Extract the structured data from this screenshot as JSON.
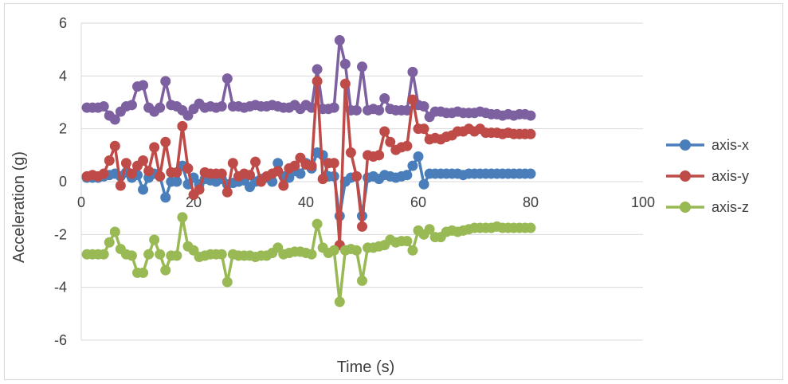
{
  "chart_data": {
    "type": "scatter",
    "title": "",
    "xlabel": "Time (s)",
    "ylabel": "Acceleration (g)",
    "xlim": [
      0,
      100
    ],
    "ylim": [
      -6,
      6
    ],
    "xticks": [
      0,
      20,
      40,
      60,
      80,
      100
    ],
    "yticks": [
      -6,
      -4,
      -2,
      0,
      2,
      4,
      6
    ],
    "grid": "horizontal",
    "legend_position": "right",
    "x": [
      1,
      2,
      3,
      4,
      5,
      6,
      7,
      8,
      9,
      10,
      11,
      12,
      13,
      14,
      15,
      16,
      17,
      18,
      19,
      20,
      21,
      22,
      23,
      24,
      25,
      26,
      27,
      28,
      29,
      30,
      31,
      32,
      33,
      34,
      35,
      36,
      37,
      38,
      39,
      40,
      41,
      42,
      43,
      44,
      45,
      46,
      47,
      48,
      49,
      50,
      51,
      52,
      53,
      54,
      55,
      56,
      57,
      58,
      59,
      60,
      61,
      62,
      63,
      64,
      65,
      66,
      67,
      68,
      69,
      70,
      71,
      72,
      73,
      74,
      75,
      76,
      77,
      78,
      79,
      80
    ],
    "series": [
      {
        "name": "axis-x",
        "color": "#4a7ebb",
        "values": [
          0.15,
          0.15,
          0.15,
          0.2,
          0.25,
          0.3,
          0.2,
          0.35,
          0.15,
          0.25,
          -0.3,
          0.15,
          0.3,
          0.2,
          -0.6,
          0.0,
          0.0,
          0.6,
          -0.1,
          0.15,
          -0.1,
          0.1,
          0.05,
          0.0,
          0.1,
          -0.1,
          -0.05,
          0.0,
          0.05,
          -0.2,
          0.0,
          0.1,
          0.15,
          0.0,
          0.7,
          0.2,
          0.15,
          0.4,
          0.3,
          0.7,
          0.5,
          1.1,
          1.0,
          0.2,
          0.2,
          -1.3,
          0.0,
          0.15,
          0.2,
          -1.3,
          0.15,
          0.2,
          0.1,
          0.25,
          0.2,
          0.15,
          0.2,
          0.25,
          0.6,
          0.95,
          -0.1,
          0.3,
          0.3,
          0.3,
          0.3,
          0.3,
          0.3,
          0.25,
          0.3,
          0.3,
          0.3,
          0.3,
          0.3,
          0.3,
          0.3,
          0.3,
          0.3,
          0.3,
          0.3,
          0.3
        ]
      },
      {
        "name": "axis-y",
        "color": "#be4b48",
        "values": [
          0.2,
          0.25,
          0.2,
          0.3,
          0.8,
          1.35,
          -0.15,
          0.7,
          0.3,
          0.6,
          0.8,
          0.4,
          1.3,
          0.2,
          1.5,
          0.35,
          0.35,
          2.1,
          0.5,
          -0.5,
          -0.3,
          0.35,
          0.3,
          0.3,
          0.3,
          -0.4,
          0.7,
          0.2,
          0.3,
          0.25,
          0.75,
          0.0,
          0.2,
          0.3,
          0.4,
          -0.15,
          0.5,
          0.6,
          0.9,
          0.65,
          0.6,
          3.8,
          0.1,
          0.7,
          0.7,
          -2.4,
          3.7,
          1.1,
          0.2,
          -1.7,
          1.0,
          0.95,
          1.0,
          1.9,
          1.5,
          1.2,
          1.3,
          1.35,
          3.1,
          2.0,
          2.0,
          1.6,
          1.65,
          1.6,
          1.7,
          1.75,
          1.9,
          1.9,
          2.0,
          1.9,
          2.0,
          1.85,
          1.85,
          1.85,
          1.8,
          1.85,
          1.8,
          1.8,
          1.8,
          1.8
        ]
      },
      {
        "name": "axis-z",
        "color": "#98b954",
        "values": [
          -2.75,
          -2.75,
          -2.75,
          -2.75,
          -2.3,
          -1.9,
          -2.55,
          -2.75,
          -2.8,
          -3.45,
          -3.45,
          -2.75,
          -2.2,
          -2.75,
          -3.35,
          -2.8,
          -2.8,
          -1.35,
          -2.45,
          -2.6,
          -2.85,
          -2.8,
          -2.75,
          -2.75,
          -2.75,
          -3.8,
          -2.75,
          -2.8,
          -2.8,
          -2.8,
          -2.85,
          -2.8,
          -2.8,
          -2.7,
          -2.5,
          -2.75,
          -2.7,
          -2.65,
          -2.65,
          -2.7,
          -2.75,
          -1.6,
          -2.5,
          -2.7,
          -2.6,
          -4.55,
          -2.6,
          -2.55,
          -2.6,
          -3.75,
          -2.5,
          -2.5,
          -2.45,
          -2.4,
          -2.2,
          -2.3,
          -2.25,
          -2.25,
          -2.6,
          -1.85,
          -2.0,
          -1.8,
          -2.1,
          -2.1,
          -1.9,
          -1.85,
          -1.9,
          -1.85,
          -1.8,
          -1.75,
          -1.75,
          -1.75,
          -1.75,
          -1.7,
          -1.75,
          -1.75,
          -1.75,
          -1.75,
          -1.75,
          -1.75
        ]
      },
      {
        "name": "",
        "color": "#7d60a0",
        "values": [
          2.8,
          2.8,
          2.8,
          2.85,
          2.5,
          2.35,
          2.65,
          2.85,
          2.9,
          3.6,
          3.65,
          2.8,
          2.65,
          2.8,
          3.8,
          2.9,
          2.85,
          2.7,
          2.5,
          2.75,
          2.95,
          2.8,
          2.85,
          2.8,
          2.85,
          3.9,
          2.85,
          2.85,
          2.8,
          2.85,
          2.9,
          2.85,
          2.85,
          2.9,
          2.85,
          2.8,
          2.8,
          2.9,
          2.75,
          2.9,
          2.8,
          4.25,
          2.75,
          2.75,
          2.8,
          5.35,
          4.45,
          2.7,
          2.7,
          4.35,
          2.7,
          2.75,
          2.7,
          3.15,
          2.75,
          2.7,
          2.7,
          2.7,
          4.15,
          2.9,
          2.85,
          2.45,
          2.65,
          2.65,
          2.6,
          2.6,
          2.65,
          2.6,
          2.6,
          2.6,
          2.65,
          2.6,
          2.55,
          2.55,
          2.5,
          2.55,
          2.5,
          2.55,
          2.55,
          2.5
        ]
      }
    ]
  }
}
